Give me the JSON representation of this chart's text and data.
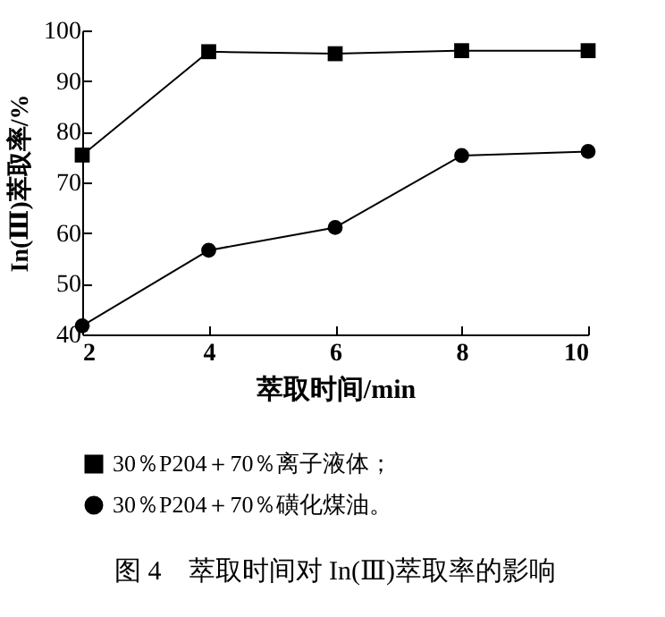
{
  "chart_data": {
    "type": "line",
    "title": "图 4　萃取时间对 In(Ⅲ)萃取率的影响",
    "xlabel": "萃取时间/min",
    "ylabel": "In(Ⅲ)萃取率/%",
    "x": [
      2,
      4,
      6,
      8,
      10
    ],
    "series": [
      {
        "name": "30％P204＋70％离子液体；",
        "color": "#000000",
        "marker": "square",
        "values": [
          75.4,
          95.8,
          95.4,
          96.0,
          96.0
        ]
      },
      {
        "name": "30％P204＋70％磺化煤油。",
        "color": "#000000",
        "marker": "circle",
        "values": [
          41.7,
          56.6,
          61.1,
          75.3,
          76.1
        ]
      }
    ],
    "xlim": [
      2,
      10
    ],
    "xticks": [
      2,
      4,
      6,
      8,
      10
    ],
    "ylim": [
      40,
      100
    ],
    "yticks": [
      40,
      50,
      60,
      70,
      80,
      90,
      100
    ],
    "grid": false,
    "legend": "bottom",
    "line_style": "solid"
  }
}
